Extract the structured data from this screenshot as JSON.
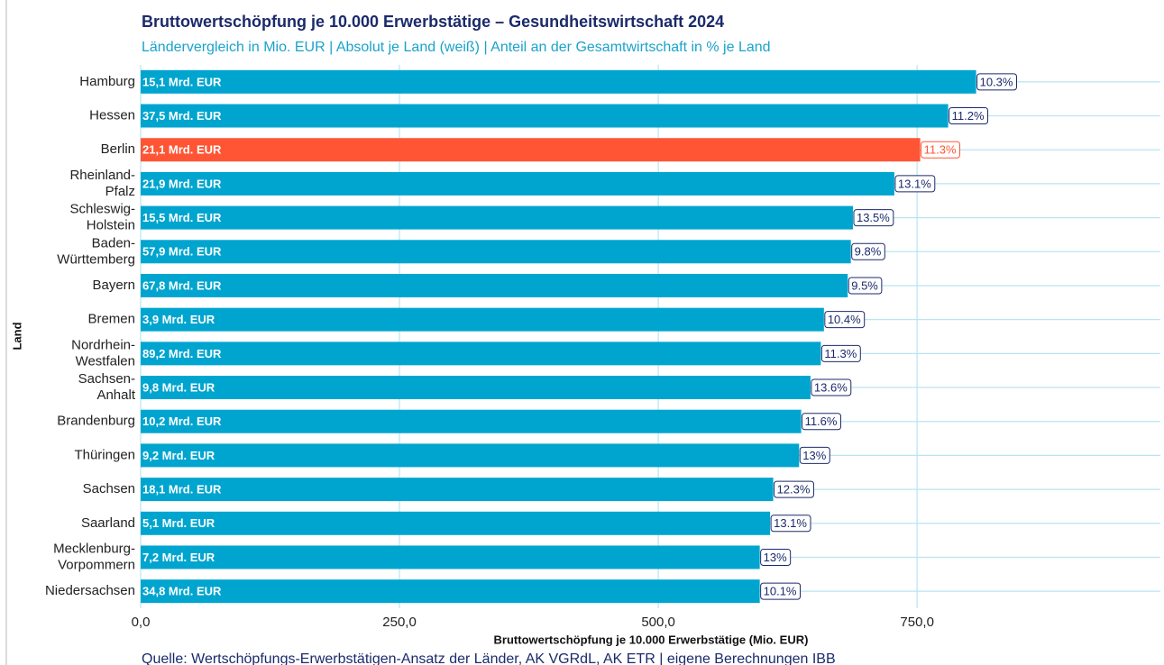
{
  "chart_data": {
    "type": "barh",
    "title": "Bruttowertschöpfung je 10.000 Erwerbstätige – Gesundheitswirtschaft 2024",
    "subtitle": "Ländervergleich in Mio. EUR | Absolut je Land (weiß) | Anteil an der Gesamtwirtschaft in % je Land",
    "xlabel": "Bruttowertschöpfung je 10.000 Erwerbstätige (Mio. EUR)",
    "ylabel": "Land",
    "source": "Quelle: Wertschöpfungs-Erwerbstätigen-Ansatz der Länder, AK VGRdL, AK ETR | eigene Berechnungen IBB",
    "categories": [
      "Hamburg",
      "Hessen",
      "Berlin",
      "Rheinland-\nPfalz",
      "Schleswig-\nHolstein",
      "Baden-\nWürttemberg",
      "Bayern",
      "Bremen",
      "Nordrhein-\nWestfalen",
      "Sachsen-\nAnhalt",
      "Brandenburg",
      "Thüringen",
      "Sachsen",
      "Saarland",
      "Mecklenburg-\nVorpommern",
      "Niedersachsen"
    ],
    "values": [
      807,
      780,
      753,
      728,
      688,
      686,
      683,
      660,
      657,
      647,
      638,
      636,
      611,
      608,
      598,
      598
    ],
    "inside_labels": [
      "15,1 Mrd. EUR",
      "37,5 Mrd. EUR",
      "21,1 Mrd. EUR",
      "21,9 Mrd. EUR",
      "15,5 Mrd. EUR",
      "57,9 Mrd. EUR",
      "67,8 Mrd. EUR",
      "3,9 Mrd. EUR",
      "89,2 Mrd. EUR",
      "9,8 Mrd. EUR",
      "10,2 Mrd. EUR",
      "9,2 Mrd. EUR",
      "18,1 Mrd. EUR",
      "5,1 Mrd. EUR",
      "7,2 Mrd. EUR",
      "34,8 Mrd. EUR"
    ],
    "share_labels": [
      "10.3%",
      "11.2%",
      "11.3%",
      "13.1%",
      "13.5%",
      "9.8%",
      "9.5%",
      "10.4%",
      "11.3%",
      "13.6%",
      "11.6%",
      "13%",
      "12.3%",
      "13.1%",
      "13%",
      "10.1%"
    ],
    "colors": [
      "#00a5cf",
      "#00a5cf",
      "#ff5535",
      "#00a5cf",
      "#00a5cf",
      "#00a5cf",
      "#00a5cf",
      "#00a5cf",
      "#00a5cf",
      "#00a5cf",
      "#00a5cf",
      "#00a5cf",
      "#00a5cf",
      "#00a5cf",
      "#00a5cf",
      "#00a5cf"
    ],
    "xlim": [
      0,
      985
    ],
    "xticks": [
      {
        "value": 0,
        "label": "0,0"
      },
      {
        "value": 250,
        "label": "250,0"
      },
      {
        "value": 500,
        "label": "500,0"
      },
      {
        "value": 750,
        "label": "750,0"
      }
    ],
    "grid": true
  }
}
